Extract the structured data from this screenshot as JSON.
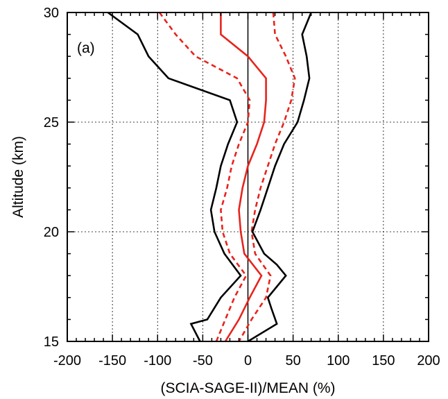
{
  "chart_data": {
    "type": "line",
    "panel_label": "(a)",
    "xlabel": "(SCIA-SAGE-II)/MEAN (%)",
    "ylabel": "Altitude (km)",
    "xlim": [
      -200,
      200
    ],
    "ylim": [
      15,
      30
    ],
    "xticks": [
      -200,
      -150,
      -100,
      -50,
      0,
      50,
      100,
      150,
      200
    ],
    "yticks": [
      15,
      20,
      25,
      30
    ],
    "x_tick_labels": [
      "-200",
      "-150",
      "-100",
      "-50",
      "0",
      "50",
      "100",
      "150",
      "200"
    ],
    "y_tick_labels": [
      "15",
      "20",
      "25",
      "30"
    ],
    "grid": true,
    "zero_line": true,
    "series": [
      {
        "color": "#000000",
        "style": "solid",
        "points": [
          [
            -155,
            30
          ],
          [
            -122,
            29
          ],
          [
            -110,
            28
          ],
          [
            -88,
            27
          ],
          [
            -20,
            26
          ],
          [
            -12,
            25
          ],
          [
            -22,
            24
          ],
          [
            -30,
            23
          ],
          [
            -35,
            22
          ],
          [
            -41,
            21
          ],
          [
            -37,
            20
          ],
          [
            -26,
            19
          ],
          [
            -8,
            18
          ],
          [
            -30,
            17
          ],
          [
            -45,
            16
          ],
          [
            -63,
            15.8
          ],
          [
            -53,
            15
          ]
        ]
      },
      {
        "color": "#e8231c",
        "style": "dashed",
        "points": [
          [
            -98,
            30
          ],
          [
            -80,
            29
          ],
          [
            -58,
            28
          ],
          [
            -12,
            27
          ],
          [
            2,
            26
          ],
          [
            0,
            25
          ],
          [
            -10,
            24
          ],
          [
            -18,
            23
          ],
          [
            -23,
            22
          ],
          [
            -30,
            21
          ],
          [
            -28,
            20
          ],
          [
            -20,
            19
          ],
          [
            -2,
            18
          ],
          [
            -15,
            17
          ],
          [
            -25,
            16
          ],
          [
            -35,
            15
          ]
        ]
      },
      {
        "color": "#e8231c",
        "style": "solid",
        "points": [
          [
            -30,
            30
          ],
          [
            -30,
            29
          ],
          [
            0,
            28
          ],
          [
            20,
            27
          ],
          [
            20,
            26
          ],
          [
            18,
            25
          ],
          [
            10,
            24
          ],
          [
            0,
            23
          ],
          [
            -6,
            22
          ],
          [
            -10,
            21
          ],
          [
            -8,
            20
          ],
          [
            -4,
            19
          ],
          [
            15,
            18
          ],
          [
            2,
            17
          ],
          [
            -10,
            16
          ],
          [
            -25,
            15
          ]
        ]
      },
      {
        "color": "#e8231c",
        "style": "dashed",
        "points": [
          [
            28,
            30
          ],
          [
            30,
            29
          ],
          [
            42,
            28
          ],
          [
            52,
            27
          ],
          [
            48,
            26
          ],
          [
            40,
            25
          ],
          [
            30,
            24
          ],
          [
            22,
            23
          ],
          [
            14,
            22
          ],
          [
            8,
            21
          ],
          [
            4,
            20
          ],
          [
            8,
            19
          ],
          [
            25,
            18
          ],
          [
            20,
            17
          ],
          [
            4,
            16
          ],
          [
            -10,
            15
          ]
        ]
      },
      {
        "color": "#000000",
        "style": "solid",
        "points": [
          [
            70,
            30
          ],
          [
            60,
            29
          ],
          [
            65,
            28
          ],
          [
            68,
            27
          ],
          [
            62,
            26
          ],
          [
            55,
            25
          ],
          [
            40,
            24
          ],
          [
            30,
            23
          ],
          [
            22,
            22
          ],
          [
            14,
            21
          ],
          [
            5,
            20
          ],
          [
            18,
            19
          ],
          [
            32,
            18.5
          ],
          [
            42,
            18
          ],
          [
            22,
            17
          ],
          [
            26,
            16.5
          ],
          [
            32,
            15.8
          ],
          [
            0,
            15
          ]
        ]
      }
    ]
  }
}
